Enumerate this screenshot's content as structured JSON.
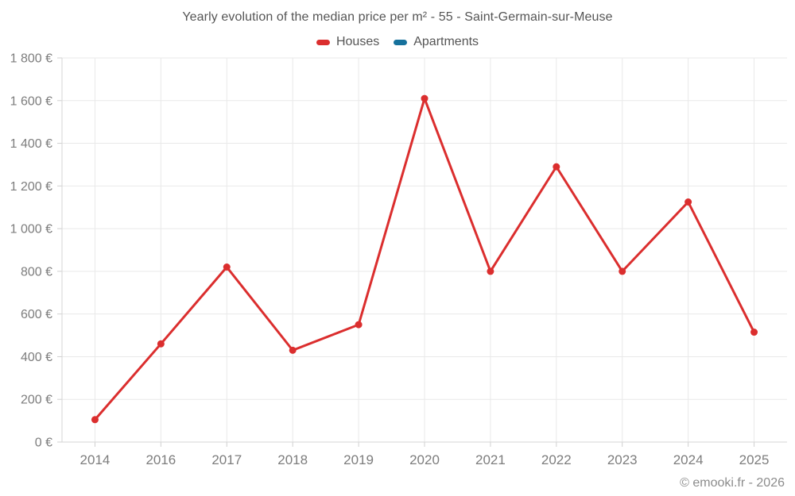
{
  "header": {
    "title": "Yearly evolution of the median price per m² - 55 - Saint-Germain-sur-Meuse"
  },
  "footer": {
    "text": "© emooki.fr - 2026"
  },
  "colors": {
    "houses": "#db2e2e",
    "apartments": "#16719c",
    "grid": "#e9e9e9",
    "axis": "#d6d6d6",
    "tick": "#d0d0d0",
    "axis_text": "#7d7d7d",
    "title_text": "#555555"
  },
  "chart_data": {
    "type": "line",
    "title": "Yearly evolution of the median price per m² - 55 - Saint-Germain-sur-Meuse",
    "categories": [
      "2014",
      "2016",
      "2017",
      "2018",
      "2019",
      "2020",
      "2021",
      "2022",
      "2023",
      "2024",
      "2025"
    ],
    "series": [
      {
        "name": "Houses",
        "color": "#db2e2e",
        "values": [
          105,
          460,
          820,
          430,
          550,
          1610,
          800,
          1290,
          800,
          1125,
          515
        ]
      },
      {
        "name": "Apartments",
        "color": "#16719c",
        "values": []
      }
    ],
    "xlabel": "",
    "ylabel": "",
    "ylim": [
      0,
      1800
    ],
    "ytick_step": 200,
    "ytick_labels": [
      "0 €",
      "200 €",
      "400 €",
      "600 €",
      "800 €",
      "1 000 €",
      "1 200 €",
      "1 400 €",
      "1 600 €",
      "1 800 €"
    ],
    "grid": true,
    "legend_position": "top",
    "marker": "circle",
    "footer": "© emooki.fr - 2026"
  }
}
